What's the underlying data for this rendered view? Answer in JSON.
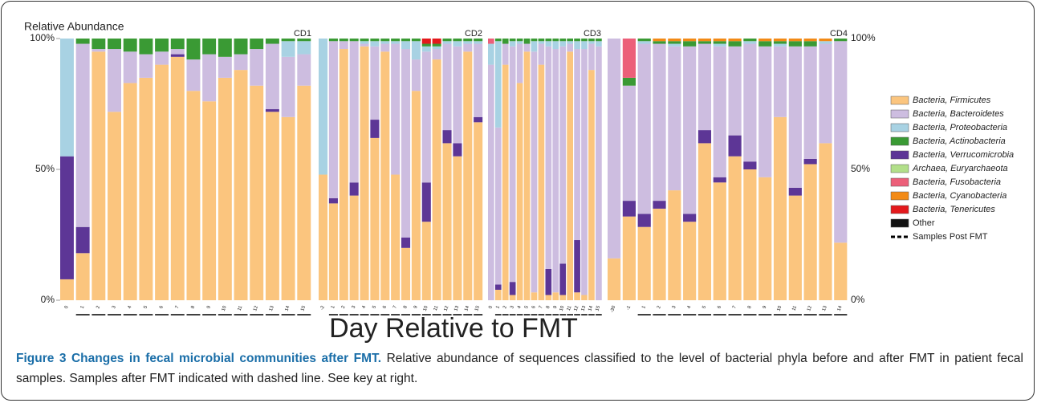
{
  "chart_data": {
    "type": "stacked_bar",
    "y_label": "Relative Abundance",
    "x_label": "Day Relative to FMT",
    "ylim": [
      0,
      100
    ],
    "yticks": [
      {
        "value": 0,
        "label": "0%"
      },
      {
        "value": 50,
        "label": "50%"
      },
      {
        "value": 100,
        "label": "100%"
      }
    ],
    "post_fmt_label": "Samples Post FMT",
    "series": [
      {
        "name": "Bacteria, Firmicutes",
        "color": "#fbc57e"
      },
      {
        "name": "Bacteria, Bacteroidetes",
        "color": "#cdbde0"
      },
      {
        "name": "Bacteria, Proteobacteria",
        "color": "#a8d2e3"
      },
      {
        "name": "Bacteria, Actinobacteria",
        "color": "#3a9a34"
      },
      {
        "name": "Bacteria, Verrucomicrobia",
        "color": "#5d3696"
      },
      {
        "name": "Archaea, Euryarchaeota",
        "color": "#b2df8a"
      },
      {
        "name": "Bacteria, Fusobacteria",
        "color": "#ec5f79"
      },
      {
        "name": "Bacteria, Cyanobacteria",
        "color": "#f28a16"
      },
      {
        "name": "Bacteria, Tenericutes",
        "color": "#e3191c"
      },
      {
        "name": "Other",
        "color": "#111111"
      }
    ],
    "panels": [
      {
        "name": "CD1",
        "categories": [
          "0",
          "1",
          "2",
          "3",
          "4",
          "5",
          "6",
          "7",
          "8",
          "9",
          "10",
          "11",
          "12",
          "13",
          "14",
          "15"
        ],
        "post_fmt": [
          false,
          true,
          true,
          true,
          true,
          true,
          true,
          true,
          true,
          true,
          true,
          true,
          true,
          true,
          true,
          true
        ],
        "series": [
          {
            "values": [
              8,
              18,
              95,
              72,
              83,
              85,
              90,
              93,
              80,
              76,
              85,
              88,
              82,
              72,
              70,
              82
            ]
          },
          {
            "values": [
              0,
              70,
              1,
              24,
              12,
              9,
              5,
              2,
              12,
              18,
              8,
              6,
              14,
              25,
              23,
              12
            ]
          },
          {
            "values": [
              45,
              0,
              0,
              0,
              0,
              0,
              0,
              0,
              0,
              0,
              0,
              0,
              0,
              0,
              6,
              5
            ]
          },
          {
            "values": [
              0,
              2,
              4,
              4,
              5,
              6,
              5,
              4,
              8,
              6,
              7,
              6,
              4,
              2,
              1,
              1
            ]
          },
          {
            "values": [
              47,
              10,
              0,
              0,
              0,
              0,
              0,
              1,
              0,
              0,
              0,
              0,
              0,
              1,
              0,
              0
            ]
          },
          {
            "values": [
              0,
              0,
              0,
              0,
              0,
              0,
              0,
              0,
              0,
              0,
              0,
              0,
              0,
              0,
              0,
              0
            ]
          },
          {
            "values": [
              0,
              0,
              0,
              0,
              0,
              0,
              0,
              0,
              0,
              0,
              0,
              0,
              0,
              0,
              0,
              0
            ]
          },
          {
            "values": [
              0,
              0,
              0,
              0,
              0,
              0,
              0,
              0,
              0,
              0,
              0,
              0,
              0,
              0,
              0,
              0
            ]
          },
          {
            "values": [
              0,
              0,
              0,
              0,
              0,
              0,
              0,
              0,
              0,
              0,
              0,
              0,
              0,
              0,
              0,
              0
            ]
          },
          {
            "values": [
              0,
              0,
              0,
              0,
              0,
              0,
              0,
              0,
              0,
              0,
              0,
              0,
              0,
              0,
              0,
              0
            ]
          }
        ]
      },
      {
        "name": "CD2",
        "categories": [
          "-2",
          "1",
          "2",
          "3",
          "4",
          "5",
          "6",
          "7",
          "8",
          "9",
          "10",
          "11",
          "12",
          "13",
          "14",
          "15"
        ],
        "post_fmt": [
          false,
          true,
          true,
          true,
          true,
          true,
          true,
          true,
          true,
          true,
          true,
          true,
          true,
          true,
          true,
          true
        ],
        "series": [
          {
            "values": [
              48,
              37,
              96,
              40,
              97,
              62,
              95,
              48,
              20,
              80,
              30,
              92,
              60,
              55,
              95,
              68
            ]
          },
          {
            "values": [
              0,
              60,
              3,
              54,
              1,
              28,
              3,
              50,
              72,
              12,
              50,
              4,
              33,
              37,
              3,
              28
            ]
          },
          {
            "values": [
              52,
              0,
              0,
              0,
              1,
              2,
              1,
              1,
              3,
              7,
              2,
              1,
              1,
              2,
              1,
              1
            ]
          },
          {
            "values": [
              0,
              1,
              1,
              1,
              1,
              1,
              1,
              1,
              1,
              1,
              1,
              1,
              1,
              1,
              1,
              1
            ]
          },
          {
            "values": [
              0,
              2,
              0,
              5,
              0,
              7,
              0,
              0,
              4,
              0,
              15,
              0,
              5,
              5,
              0,
              2
            ]
          },
          {
            "values": [
              0,
              0,
              0,
              0,
              0,
              0,
              0,
              0,
              0,
              0,
              0,
              0,
              0,
              0,
              0,
              0
            ]
          },
          {
            "values": [
              0,
              0,
              0,
              0,
              0,
              0,
              0,
              0,
              0,
              0,
              0,
              0,
              0,
              0,
              0,
              0
            ]
          },
          {
            "values": [
              0,
              0,
              0,
              0,
              0,
              0,
              0,
              0,
              0,
              0,
              0,
              0,
              0,
              0,
              0,
              0
            ]
          },
          {
            "values": [
              0,
              0,
              0,
              0,
              0,
              0,
              0,
              0,
              0,
              0,
              2,
              2,
              0,
              0,
              0,
              0
            ]
          },
          {
            "values": [
              0,
              0,
              0,
              0,
              0,
              0,
              0,
              0,
              0,
              0,
              0,
              0,
              0,
              0,
              0,
              0
            ]
          }
        ]
      },
      {
        "name": "CD3",
        "categories": [
          "0",
          "1",
          "2",
          "3",
          "4",
          "5",
          "6",
          "7",
          "8",
          "9",
          "10",
          "11",
          "12",
          "13",
          "14",
          "15"
        ],
        "post_fmt": [
          false,
          true,
          true,
          true,
          true,
          true,
          true,
          true,
          true,
          true,
          true,
          true,
          true,
          true,
          true,
          true
        ],
        "series": [
          {
            "values": [
              0,
              4,
              90,
              2,
              83,
              95,
              3,
              90,
              2,
              3,
              2,
              95,
              3,
              2,
              88,
              0
            ]
          },
          {
            "values": [
              90,
              60,
              8,
              90,
              15,
              3,
              92,
              8,
              85,
              93,
              83,
              3,
              73,
              94,
              10,
              97
            ]
          },
          {
            "values": [
              8,
              33,
              0,
              2,
              1,
              0,
              4,
              1,
              2,
              3,
              2,
              1,
              3,
              3,
              1,
              2
            ]
          },
          {
            "values": [
              0,
              1,
              2,
              1,
              1,
              2,
              1,
              1,
              1,
              1,
              1,
              1,
              1,
              1,
              1,
              1
            ]
          },
          {
            "values": [
              0,
              2,
              0,
              5,
              0,
              0,
              0,
              0,
              10,
              0,
              12,
              0,
              20,
              0,
              0,
              0
            ]
          },
          {
            "values": [
              0,
              0,
              0,
              0,
              0,
              0,
              0,
              0,
              0,
              0,
              0,
              0,
              0,
              0,
              0,
              0
            ]
          },
          {
            "values": [
              2,
              0,
              0,
              0,
              0,
              0,
              0,
              0,
              0,
              0,
              0,
              0,
              0,
              0,
              0,
              0
            ]
          },
          {
            "values": [
              0,
              0,
              0,
              0,
              0,
              0,
              0,
              0,
              0,
              0,
              0,
              0,
              0,
              0,
              0,
              0
            ]
          },
          {
            "values": [
              0,
              0,
              0,
              0,
              0,
              0,
              0,
              0,
              0,
              0,
              0,
              0,
              0,
              0,
              0,
              0
            ]
          },
          {
            "values": [
              0,
              0,
              0,
              0,
              0,
              0,
              0,
              0,
              0,
              0,
              0,
              0,
              0,
              0,
              0,
              0
            ]
          }
        ]
      },
      {
        "name": "CD4",
        "categories": [
          "-30",
          "-1",
          "1",
          "2",
          "3",
          "4",
          "5",
          "6",
          "7",
          "8",
          "9",
          "10",
          "11",
          "12",
          "13",
          "14"
        ],
        "post_fmt": [
          false,
          false,
          true,
          true,
          true,
          true,
          true,
          true,
          true,
          true,
          true,
          true,
          true,
          true,
          true,
          true
        ],
        "series": [
          {
            "values": [
              16,
              32,
              28,
              35,
              42,
              30,
              60,
              45,
              55,
              50,
              47,
              70,
              40,
              52,
              60,
              22
            ]
          },
          {
            "values": [
              84,
              44,
              65,
              60,
              55,
              64,
              33,
              50,
              34,
              45,
              50,
              27,
              54,
              43,
              38,
              77
            ]
          },
          {
            "values": [
              0,
              0,
              1,
              0,
              1,
              0,
              0,
              1,
              0,
              1,
              0,
              1,
              0,
              0,
              1,
              0
            ]
          },
          {
            "values": [
              0,
              3,
              1,
              1,
              1,
              2,
              1,
              1,
              2,
              1,
              2,
              1,
              2,
              2,
              0,
              1
            ]
          },
          {
            "values": [
              0,
              6,
              5,
              3,
              0,
              3,
              5,
              2,
              8,
              3,
              0,
              0,
              3,
              2,
              0,
              0
            ]
          },
          {
            "values": [
              0,
              0,
              0,
              0,
              0,
              0,
              0,
              0,
              0,
              0,
              0,
              0,
              0,
              0,
              0,
              0
            ]
          },
          {
            "values": [
              0,
              15,
              0,
              0,
              0,
              0,
              0,
              0,
              0,
              0,
              0,
              0,
              0,
              0,
              0,
              0
            ]
          },
          {
            "values": [
              0,
              0,
              0,
              1,
              1,
              1,
              1,
              1,
              1,
              0,
              1,
              1,
              1,
              1,
              1,
              0
            ]
          },
          {
            "values": [
              0,
              0,
              0,
              0,
              0,
              0,
              0,
              0,
              0,
              0,
              0,
              0,
              0,
              0,
              0,
              0
            ]
          },
          {
            "values": [
              0,
              0,
              0,
              0,
              0,
              0,
              0,
              0,
              0,
              0,
              0,
              0,
              0,
              0,
              0,
              0
            ]
          }
        ]
      }
    ]
  },
  "caption": {
    "label": "Figure 3 Changes in fecal microbial communities after FMT.",
    "text": "Relative abundance of sequences classified to the level of bacterial phyla before and after FMT in patient fecal samples. Samples after FMT indicated with dashed line. See key at right."
  }
}
